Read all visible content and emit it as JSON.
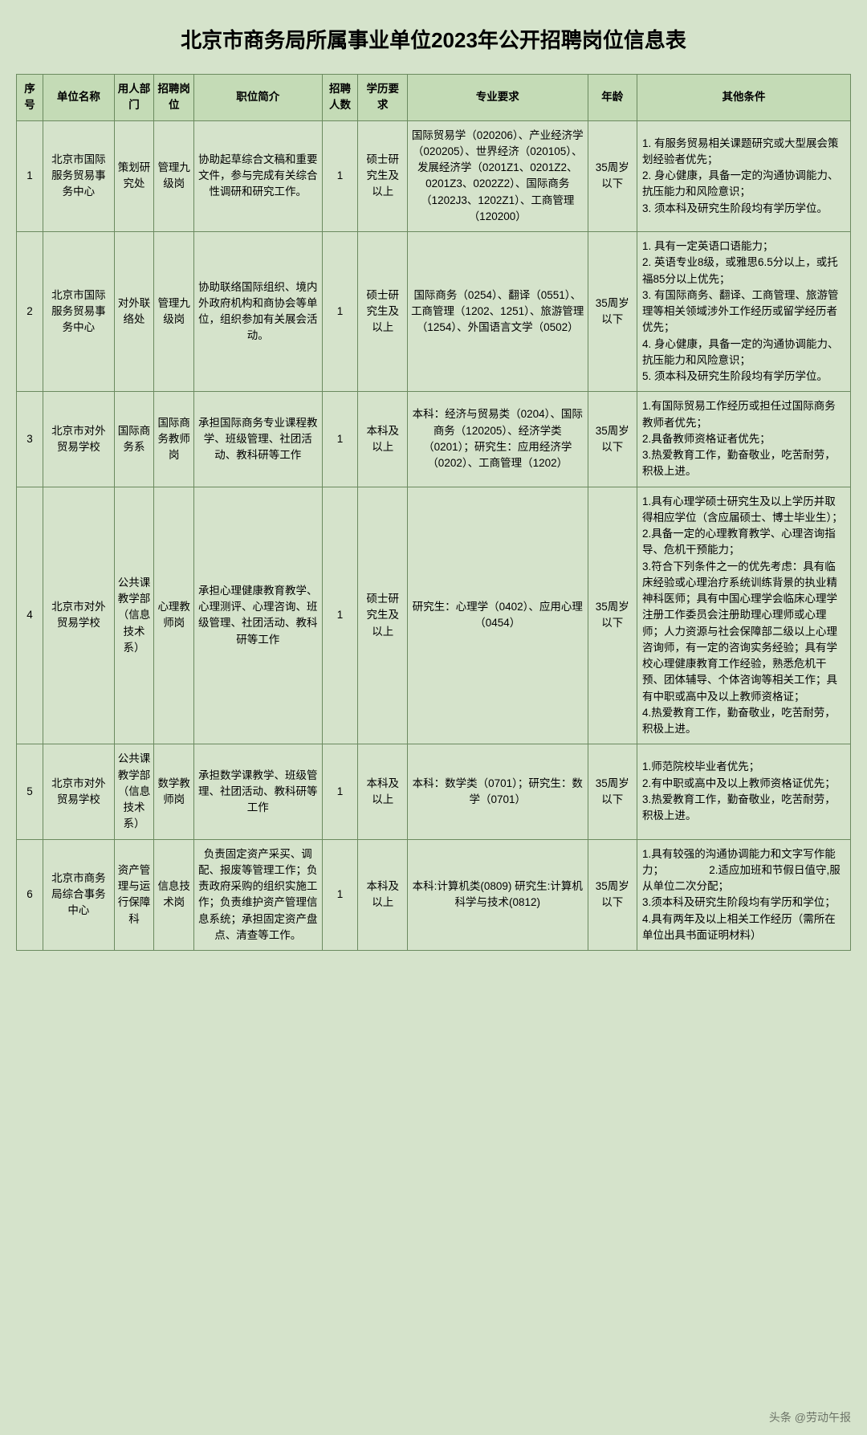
{
  "title": "北京市商务局所属事业单位2023年公开招聘岗位信息表",
  "watermark": "头条 @劳动午报",
  "headers": {
    "seq": "序号",
    "unit": "单位名称",
    "dept": "用人部门",
    "post": "招聘岗位",
    "desc": "职位简介",
    "count": "招聘人数",
    "edu": "学历要求",
    "major": "专业要求",
    "age": "年龄",
    "other": "其他条件"
  },
  "rows": [
    {
      "seq": "1",
      "unit": "北京市国际服务贸易事务中心",
      "dept": "策划研究处",
      "post": "管理九级岗",
      "desc": "协助起草综合文稿和重要文件，参与完成有关综合性调研和研究工作。",
      "count": "1",
      "edu": "硕士研究生及以上",
      "major": "国际贸易学（020206）、产业经济学（020205）、世界经济（020105）、发展经济学（0201Z1、0201Z2、0201Z3、0202Z2）、国际商务（1202J3、1202Z1）、工商管理（120200）",
      "age": "35周岁以下",
      "other": "1. 有服务贸易相关课题研究或大型展会策划经验者优先；\n2. 身心健康，具备一定的沟通协调能力、抗压能力和风险意识；\n3. 须本科及研究生阶段均有学历学位。"
    },
    {
      "seq": "2",
      "unit": "北京市国际服务贸易事务中心",
      "dept": "对外联络处",
      "post": "管理九级岗",
      "desc": "协助联络国际组织、境内外政府机构和商协会等单位，组织参加有关展会活动。",
      "count": "1",
      "edu": "硕士研究生及以上",
      "major": "国际商务（0254）、翻译（0551）、工商管理（1202、1251）、旅游管理（1254）、外国语言文学（0502）",
      "age": "35周岁以下",
      "other": "1. 具有一定英语口语能力；\n2. 英语专业8级，或雅思6.5分以上，或托福85分以上优先；\n3. 有国际商务、翻译、工商管理、旅游管理等相关领域涉外工作经历或留学经历者优先；\n4. 身心健康，具备一定的沟通协调能力、抗压能力和风险意识；\n5. 须本科及研究生阶段均有学历学位。"
    },
    {
      "seq": "3",
      "unit": "北京市对外贸易学校",
      "dept": "国际商务系",
      "post": "国际商务教师岗",
      "desc": "承担国际商务专业课程教学、班级管理、社团活动、教科研等工作",
      "count": "1",
      "edu": "本科及以上",
      "major": "本科：经济与贸易类（0204）、国际商务（120205）、经济学类（0201）；研究生：应用经济学（0202）、工商管理（1202）",
      "age": "35周岁以下",
      "other": "1.有国际贸易工作经历或担任过国际商务教师者优先；\n2.具备教师资格证者优先；\n3.热爱教育工作，勤奋敬业，吃苦耐劳，积极上进。"
    },
    {
      "seq": "4",
      "unit": "北京市对外贸易学校",
      "dept": "公共课教学部（信息技术系）",
      "post": "心理教师岗",
      "desc": "承担心理健康教育教学、心理测评、心理咨询、班级管理、社团活动、教科研等工作",
      "count": "1",
      "edu": "硕士研究生及以上",
      "major": "研究生：心理学（0402）、应用心理（0454）",
      "age": "35周岁以下",
      "other": "1.具有心理学硕士研究生及以上学历并取得相应学位（含应届硕士、博士毕业生）；\n2.具备一定的心理教育教学、心理咨询指导、危机干预能力；\n3.符合下列条件之一的优先考虑：具有临床经验或心理治疗系统训练背景的执业精神科医师；具有中国心理学会临床心理学注册工作委员会注册助理心理师或心理师；人力资源与社会保障部二级以上心理咨询师，有一定的咨询实务经验；具有学校心理健康教育工作经验，熟悉危机干预、团体辅导、个体咨询等相关工作；具有中职或高中及以上教师资格证；\n4.热爱教育工作，勤奋敬业，吃苦耐劳，积极上进。"
    },
    {
      "seq": "5",
      "unit": "北京市对外贸易学校",
      "dept": "公共课教学部（信息技术系）",
      "post": "数学教师岗",
      "desc": "承担数学课教学、班级管理、社团活动、教科研等工作",
      "count": "1",
      "edu": "本科及以上",
      "major": "本科：数学类（0701）；研究生：数学（0701）",
      "age": "35周岁以下",
      "other": "1.师范院校毕业者优先；\n2.有中职或高中及以上教师资格证优先；\n3.热爱教育工作，勤奋敬业，吃苦耐劳，积极上进。"
    },
    {
      "seq": "6",
      "unit": "北京市商务局综合事务中心",
      "dept": "资产管理与运行保障科",
      "post": "信息技术岗",
      "desc": "负责固定资产采买、调配、报废等管理工作；负责政府采购的组织实施工作；负责维护资产管理信息系统；承担固定资产盘点、清查等工作。",
      "count": "1",
      "edu": "本科及以上",
      "major": "本科:计算机类(0809) 研究生:计算机科学与技术(0812)",
      "age": "35周岁以下",
      "other": "1.具有较强的沟通协调能力和文字写作能力；               2.适应加班和节假日值守,服从单位二次分配；\n3.须本科及研究生阶段均有学历和学位；\n4.具有两年及以上相关工作经历（需所在单位出具书面证明材料）"
    }
  ],
  "colors": {
    "background": "#d5e3cb",
    "header_bg": "#c4dbb6",
    "border": "#6b8a5f",
    "text": "#000000"
  }
}
